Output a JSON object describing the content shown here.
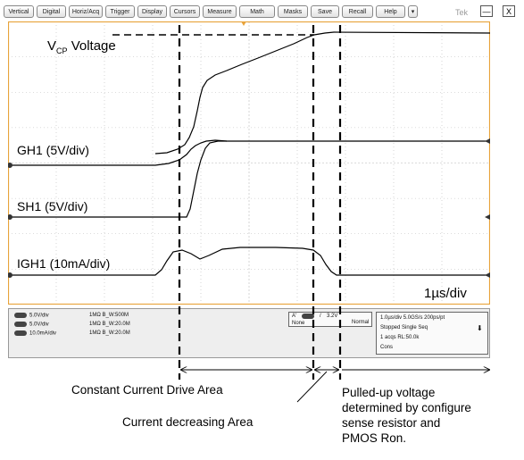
{
  "toolbar": {
    "buttons": [
      "Vertical",
      "Digital",
      "Horiz/Acq",
      "Trigger",
      "Display",
      "Cursors",
      "Measure",
      "Math",
      "Masks",
      "Save",
      "Recall",
      "Help",
      "▾"
    ],
    "brand": "Tek",
    "minimize_label": "—",
    "close_label": "X"
  },
  "scope": {
    "traces": {
      "vcp_main": "V",
      "vcp_sub": "CP",
      "vcp_rest": " Voltage",
      "gh1": "GH1 (5V/div)",
      "sh1": "SH1 (5V/div)",
      "igh1": "IGH1 (10mA/div)"
    },
    "timebase": "1µs/div"
  },
  "status": {
    "channels": [
      {
        "scale": "5.0V/div",
        "coupling": "1MΩ B_W:500M"
      },
      {
        "scale": "5.0V/div",
        "coupling": "1MΩ B_W:20.0M"
      },
      {
        "scale": "10.0mA/div",
        "coupling": "1MΩ B_W:20.0M"
      }
    ],
    "trigger": {
      "source": "A'",
      "slope": "/",
      "level": "3.2V",
      "coupling": "None",
      "mode": "Normal"
    },
    "acquisition": {
      "line1": "1.0µs/div   5.0GS/s        200ps/pt",
      "line2": "Stopped        Single Seq",
      "line3": "1 acqs                           RL:50.0k",
      "line4": "Cons"
    }
  },
  "annotations": {
    "constant_current": "Constant Current Drive Area",
    "current_decreasing": "Current decreasing Area",
    "pulled_up_1": "Pulled-up voltage",
    "pulled_up_2": "determined by configure",
    "pulled_up_3": "sense resistor and",
    "pulled_up_4": "PMOS Ron."
  },
  "colors": {
    "frame": "#e8a33a",
    "grid": "#b8b8b8",
    "trace": "#000000"
  }
}
